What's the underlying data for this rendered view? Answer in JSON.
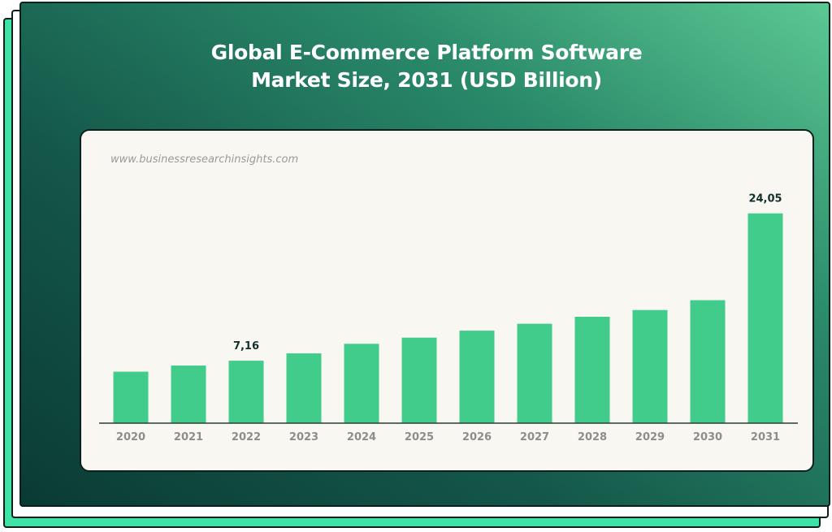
{
  "title": {
    "line1": "Global E-Commerce Platform Software",
    "line2": "Market Size, 2031 (USD Billion)"
  },
  "watermark": "www.businessresearchinsights.com",
  "colors": {
    "bar": "#42cc8c",
    "axis": "#2c3b3a",
    "tick_label": "#8d8d8d",
    "data_label": "#12302b"
  },
  "chart_data": {
    "type": "bar",
    "categories": [
      "2020",
      "2021",
      "2022",
      "2023",
      "2024",
      "2025",
      "2026",
      "2027",
      "2028",
      "2029",
      "2030",
      "2031"
    ],
    "values": [
      5.9,
      6.6,
      7.16,
      8.0,
      9.1,
      9.8,
      10.6,
      11.4,
      12.2,
      12.97,
      14.1,
      24.05
    ],
    "value_labels": [
      "",
      "",
      "7,16",
      "",
      "",
      "",
      "",
      "",
      "",
      "",
      "",
      "24,05"
    ],
    "title": "Global E-Commerce Platform Software Market Size, 2031 (USD Billion)",
    "xlabel": "",
    "ylabel": "",
    "ylim": [
      0,
      27
    ],
    "grid": false,
    "legend": "none"
  }
}
